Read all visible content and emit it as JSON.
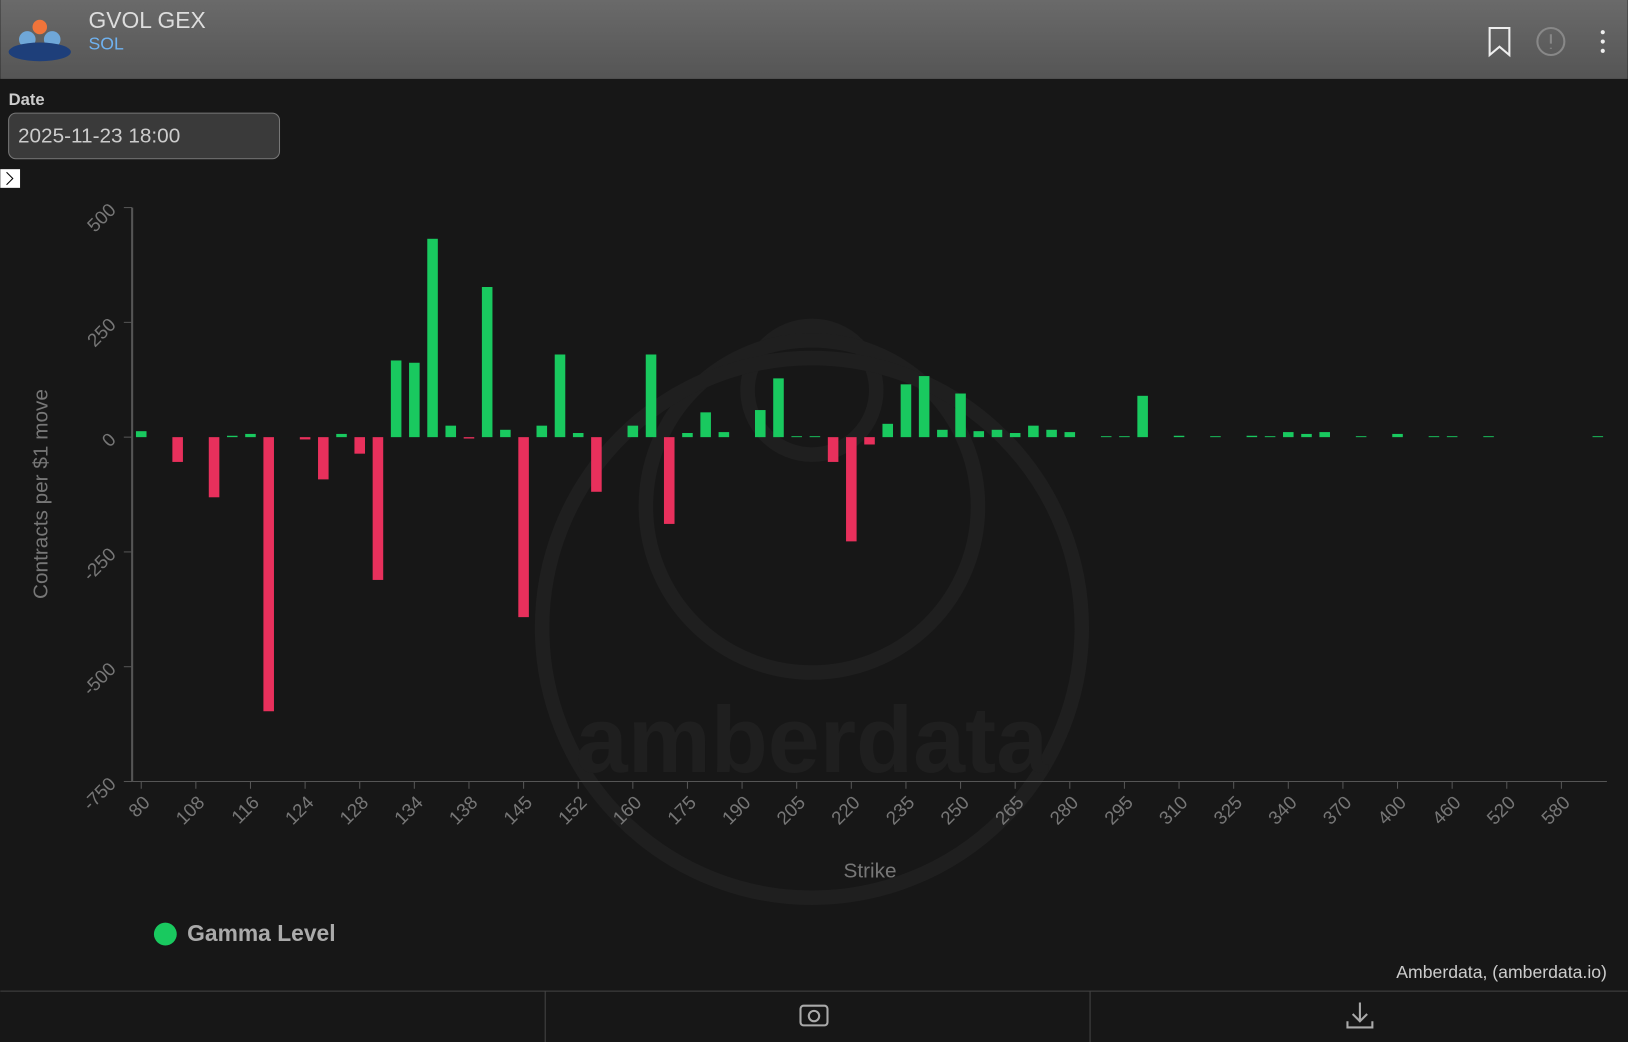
{
  "header": {
    "title": "GVOL GEX",
    "subtitle": "SOL"
  },
  "date_field": {
    "label": "Date",
    "value": "2025-11-23 18:00"
  },
  "watermark": "amberdata",
  "credit": "Amberdata, (amberdata.io)",
  "chart_data": {
    "type": "bar",
    "x_label": "Strike",
    "y_label": "Contracts per $1 move",
    "categories": [
      "80",
      null,
      null,
      "108",
      null,
      null,
      "116",
      null,
      null,
      "124",
      null,
      null,
      "128",
      null,
      null,
      "134",
      null,
      null,
      "138",
      null,
      null,
      "145",
      null,
      null,
      "152",
      null,
      null,
      "160",
      null,
      null,
      "175",
      null,
      null,
      "190",
      null,
      null,
      "205",
      null,
      null,
      "220",
      null,
      null,
      "235",
      null,
      null,
      "250",
      null,
      null,
      "265",
      null,
      null,
      "280",
      null,
      null,
      "295",
      null,
      null,
      "310",
      null,
      null,
      "325",
      null,
      null,
      "340",
      null,
      null,
      "370",
      null,
      null,
      "400",
      null,
      null,
      "460",
      null,
      null,
      "520",
      null,
      null,
      "580",
      null,
      null
    ],
    "series": [
      {
        "name": "Gamma Level",
        "color": "#19c95f",
        "negative_color": "#e8305c",
        "values": [
          13,
          0,
          -54,
          0,
          -131,
          3,
          7,
          -597,
          0,
          -5,
          -92,
          7,
          -36,
          -311,
          167,
          162,
          432,
          25,
          -3,
          327,
          16,
          -392,
          25,
          180,
          9,
          -119,
          0,
          25,
          180,
          -189,
          9,
          54,
          11,
          0,
          59,
          128,
          2,
          2,
          -54,
          -227,
          -16,
          29,
          115,
          133,
          16,
          95,
          13,
          16,
          9,
          25,
          16,
          11,
          0,
          2,
          2,
          90,
          0,
          3,
          0,
          2,
          0,
          3,
          2,
          11,
          7,
          11,
          0,
          2,
          0,
          7,
          0,
          2,
          2,
          0,
          2,
          0,
          0,
          0,
          0,
          0,
          2
        ]
      }
    ],
    "ylim": [
      -750,
      500
    ],
    "yticks": [
      500,
      250,
      0,
      -250,
      -500,
      -750
    ]
  }
}
